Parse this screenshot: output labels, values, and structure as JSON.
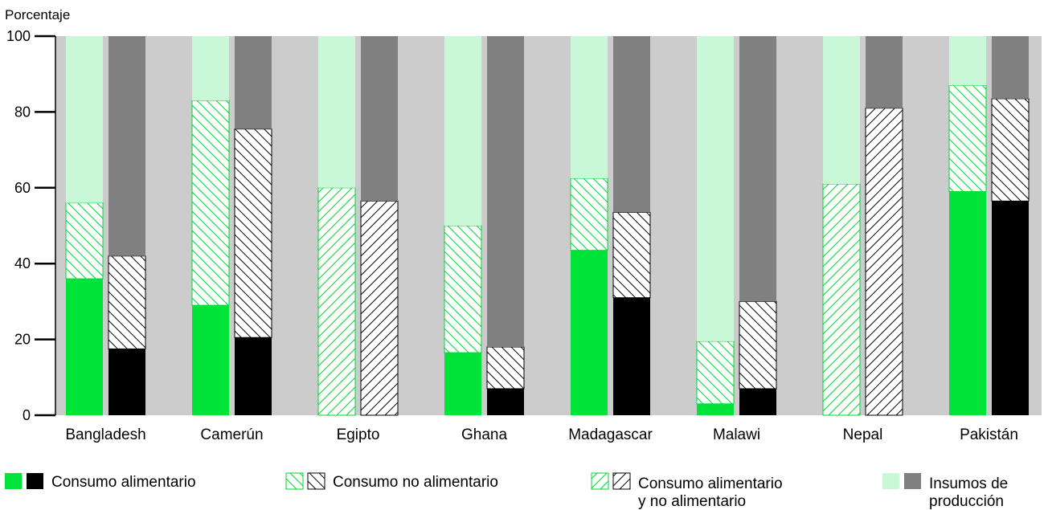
{
  "chart_data": {
    "type": "bar",
    "ylabel": "Porcentaje",
    "ylim": [
      0,
      100
    ],
    "yticks": [
      0,
      20,
      40,
      60,
      80,
      100
    ],
    "categories": [
      "Bangladesh",
      "Camerún",
      "Egipto",
      "Ghana",
      "Madagascar",
      "Malawi",
      "Nepal",
      "Pakistán"
    ],
    "groups": [
      {
        "name": "left-bar",
        "series": [
          {
            "name": "Consumo alimentario",
            "values": [
              36,
              29,
              0,
              16.5,
              43.5,
              3,
              0,
              59
            ]
          },
          {
            "name": "Consumo no alimentario",
            "values": [
              20,
              54,
              0,
              33.5,
              19,
              16.5,
              0,
              28
            ]
          },
          {
            "name": "Consumo alimentario y no alimentario",
            "values": [
              0,
              0,
              60,
              0,
              0,
              0,
              61,
              0
            ]
          },
          {
            "name": "Insumos de producción",
            "values": [
              44,
              17,
              40,
              50,
              37.5,
              80.5,
              39,
              13
            ]
          }
        ]
      },
      {
        "name": "right-bar",
        "series": [
          {
            "name": "Consumo alimentario",
            "values": [
              17.5,
              20.5,
              0,
              7,
              31,
              7,
              0,
              56.5
            ]
          },
          {
            "name": "Consumo no alimentario",
            "values": [
              24.5,
              55,
              0,
              11,
              22.5,
              23,
              0,
              27
            ]
          },
          {
            "name": "Consumo alimentario y no alimentario",
            "values": [
              0,
              0,
              56.5,
              0,
              0,
              0,
              81,
              0
            ]
          },
          {
            "name": "Insumos de producción",
            "values": [
              58,
              24.5,
              43.5,
              82,
              46.5,
              70,
              19,
              16.5
            ]
          }
        ]
      }
    ],
    "colors": {
      "left": {
        "food": "#00e43a",
        "nonfood": "#ffffff",
        "both": "#ffffff",
        "inputs": "#c9f8d9",
        "hatch": "#00d635"
      },
      "right": {
        "food": "#000000",
        "nonfood": "#ffffff",
        "both": "#ffffff",
        "inputs": "#808080",
        "hatch": "#000000"
      },
      "plot_background": "#cccccc"
    },
    "legend": [
      {
        "key": "food",
        "label_lines": [
          "Consumo alimentario"
        ]
      },
      {
        "key": "nonfood",
        "label_lines": [
          "Consumo no alimentario"
        ]
      },
      {
        "key": "both",
        "label_lines": [
          "Consumo alimentario",
          "y no alimentario"
        ]
      },
      {
        "key": "inputs",
        "label_lines": [
          "Insumos de",
          "producción"
        ]
      }
    ],
    "legend_position": "bottom",
    "grid": false
  }
}
